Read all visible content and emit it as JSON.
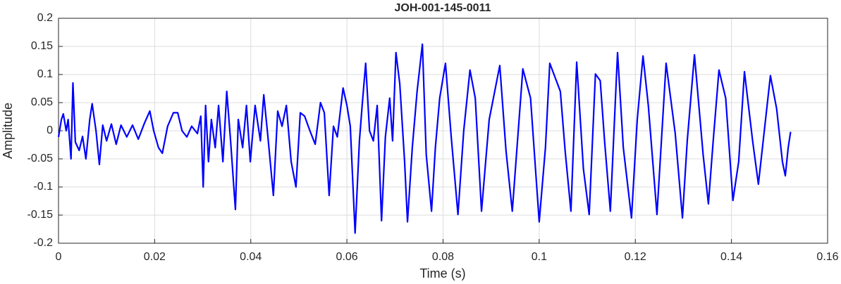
{
  "chart_data": {
    "type": "line",
    "title": "JOH-001-145-0011",
    "x_label": "Time (s)",
    "y_label": "Amplitude",
    "xlim": [
      0,
      0.16
    ],
    "ylim": [
      -0.2,
      0.2
    ],
    "xticks": [
      0,
      0.02,
      0.04,
      0.06,
      0.08,
      0.1,
      0.12,
      0.14,
      0.16
    ],
    "yticks": [
      -0.2,
      -0.15,
      -0.1,
      -0.05,
      0,
      0.05,
      0.1,
      0.15,
      0.2
    ],
    "grid": true,
    "x": [
      0,
      0.0006,
      0.001,
      0.0016,
      0.002,
      0.0026,
      0.003,
      0.0035,
      0.0043,
      0.005,
      0.0057,
      0.0065,
      0.007,
      0.0078,
      0.0085,
      0.0092,
      0.01,
      0.011,
      0.012,
      0.013,
      0.0142,
      0.0154,
      0.0166,
      0.0179,
      0.019,
      0.0198,
      0.0208,
      0.0216,
      0.0227,
      0.0239,
      0.0248,
      0.0257,
      0.0267,
      0.0277,
      0.0289,
      0.0296,
      0.0301,
      0.0306,
      0.0312,
      0.0318,
      0.0326,
      0.0333,
      0.0342,
      0.035,
      0.0358,
      0.0368,
      0.0374,
      0.0383,
      0.0391,
      0.0399,
      0.0409,
      0.042,
      0.0427,
      0.0435,
      0.0447,
      0.0456,
      0.0465,
      0.0474,
      0.0484,
      0.0494,
      0.0503,
      0.0512,
      0.0523,
      0.0534,
      0.0545,
      0.0553,
      0.0563,
      0.0572,
      0.058,
      0.0592,
      0.06,
      0.0607,
      0.0617,
      0.0626,
      0.0632,
      0.0639,
      0.0647,
      0.0655,
      0.0663,
      0.0672,
      0.068,
      0.0689,
      0.0695,
      0.0702,
      0.071,
      0.072,
      0.0726,
      0.0736,
      0.0746,
      0.0757,
      0.0765,
      0.0776,
      0.0784,
      0.0793,
      0.0805,
      0.0817,
      0.0831,
      0.0843,
      0.0856,
      0.0867,
      0.088,
      0.0896,
      0.0918,
      0.0931,
      0.0944,
      0.0966,
      0.0982,
      0.1,
      0.1013,
      0.1022,
      0.1044,
      0.1054,
      0.1066,
      0.1078,
      0.1092,
      0.1104,
      0.1117,
      0.1127,
      0.1136,
      0.1148,
      0.1163,
      0.1175,
      0.1192,
      0.1204,
      0.1216,
      0.1227,
      0.1245,
      0.1264,
      0.1283,
      0.1298,
      0.1308,
      0.1323,
      0.1341,
      0.1352,
      0.1362,
      0.1374,
      0.1388,
      0.1403,
      0.1415,
      0.1427,
      0.1444,
      0.1456,
      0.1466,
      0.1481,
      0.1494,
      0.1506,
      0.1512,
      0.1518,
      0.1523
    ],
    "series": [
      {
        "color": "#0000ff",
        "values": [
          -0.011,
          0.02,
          0.03,
          0,
          0.02,
          -0.05,
          0.085,
          -0.02,
          -0.035,
          -0.01,
          -0.05,
          0.02,
          0.048,
          0,
          -0.06,
          0.01,
          -0.018,
          0.012,
          -0.024,
          0.01,
          -0.011,
          0.01,
          -0.015,
          0.014,
          0.035,
          0,
          -0.03,
          -0.04,
          0.008,
          0.032,
          0.032,
          0,
          -0.011,
          0.008,
          -0.005,
          0.026,
          -0.1,
          0.045,
          -0.055,
          0.02,
          -0.03,
          0.045,
          -0.055,
          0.07,
          -0.018,
          -0.14,
          0.02,
          -0.03,
          0.045,
          -0.055,
          0.045,
          -0.018,
          0.064,
          -0.005,
          -0.115,
          0.035,
          0.008,
          0.045,
          -0.055,
          -0.1,
          0.032,
          0.026,
          0,
          -0.024,
          0.05,
          0.032,
          -0.115,
          0.008,
          -0.011,
          0.076,
          0.045,
          0.008,
          -0.182,
          -0.018,
          0.048,
          0.12,
          0,
          -0.018,
          0.045,
          -0.16,
          -0.011,
          0.058,
          -0.018,
          0.139,
          0.083,
          -0.055,
          -0.162,
          -0.03,
          0.07,
          0.154,
          -0.042,
          -0.143,
          -0.03,
          0.058,
          0.12,
          -0.011,
          -0.149,
          0,
          0.108,
          0.058,
          -0.143,
          0.02,
          0.116,
          -0.036,
          -0.143,
          0.11,
          0.058,
          -0.162,
          -0.03,
          0.12,
          0.07,
          -0.036,
          -0.143,
          0.122,
          -0.068,
          -0.149,
          0.101,
          0.089,
          -0.018,
          -0.143,
          0.139,
          -0.03,
          -0.155,
          0.02,
          0.133,
          0.045,
          -0.149,
          0.12,
          -0.005,
          -0.155,
          -0.018,
          0.135,
          -0.042,
          -0.13,
          -0.018,
          0.108,
          0.058,
          -0.124,
          -0.055,
          0.105,
          -0.018,
          -0.095,
          -0.018,
          0.098,
          0.039,
          -0.055,
          -0.08,
          -0.03,
          -0.002
        ]
      }
    ]
  }
}
